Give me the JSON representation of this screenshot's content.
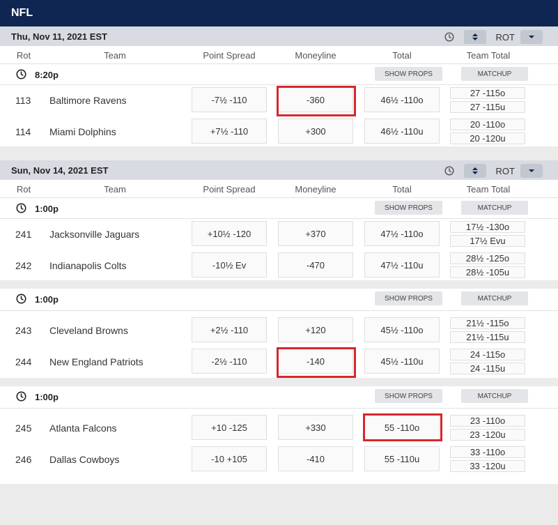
{
  "header": {
    "title": "NFL"
  },
  "columns": {
    "rot": "Rot",
    "team": "Team",
    "spread": "Point Spread",
    "moneyline": "Moneyline",
    "total": "Total",
    "team_total": "Team Total"
  },
  "controls": {
    "rot_label": "ROT"
  },
  "buttons": {
    "props": "SHOW PROPS",
    "matchup": "MATCHUP"
  },
  "days": [
    {
      "date": "Thu, Nov 11, 2021 EST",
      "games": [
        {
          "time": "8:20p",
          "teams": [
            {
              "rot": "113",
              "name": "Baltimore Ravens",
              "spread": "-7½ -110",
              "moneyline": "-360",
              "total": "46½ -110o",
              "tt1": "27 -115o",
              "tt2": "27 -115u"
            },
            {
              "rot": "114",
              "name": "Miami Dolphins",
              "spread": "+7½ -110",
              "moneyline": "+300",
              "total": "46½ -110u",
              "tt1": "20 -110o",
              "tt2": "20 -120u"
            }
          ]
        }
      ]
    },
    {
      "date": "Sun, Nov 14, 2021 EST",
      "games": [
        {
          "time": "1:00p",
          "teams": [
            {
              "rot": "241",
              "name": "Jacksonville Jaguars",
              "spread": "+10½ -120",
              "moneyline": "+370",
              "total": "47½ -110o",
              "tt1": "17½ -130o",
              "tt2": "17½ Evu"
            },
            {
              "rot": "242",
              "name": "Indianapolis Colts",
              "spread": "-10½ Ev",
              "moneyline": "-470",
              "total": "47½ -110u",
              "tt1": "28½ -125o",
              "tt2": "28½ -105u"
            }
          ]
        },
        {
          "time": "1:00p",
          "teams": [
            {
              "rot": "243",
              "name": "Cleveland Browns",
              "spread": "+2½ -110",
              "moneyline": "+120",
              "total": "45½ -110o",
              "tt1": "21½ -115o",
              "tt2": "21½ -115u"
            },
            {
              "rot": "244",
              "name": "New England Patriots",
              "spread": "-2½ -110",
              "moneyline": "-140",
              "total": "45½ -110u",
              "tt1": "24 -115o",
              "tt2": "24 -115u"
            }
          ]
        },
        {
          "time": "1:00p",
          "teams": [
            {
              "rot": "245",
              "name": "Atlanta Falcons",
              "spread": "+10 -125",
              "moneyline": "+330",
              "total": "55 -110o",
              "tt1": "23 -110o",
              "tt2": "23 -120u"
            },
            {
              "rot": "246",
              "name": "Dallas Cowboys",
              "spread": "-10 +105",
              "moneyline": "-410",
              "total": "55 -110u",
              "tt1": "33 -110o",
              "tt2": "33 -120u"
            }
          ]
        }
      ]
    }
  ],
  "colors": {
    "header_bg": "#0f2653",
    "highlight": "#d6262e",
    "date_bar_bg": "#d8dbe1"
  }
}
